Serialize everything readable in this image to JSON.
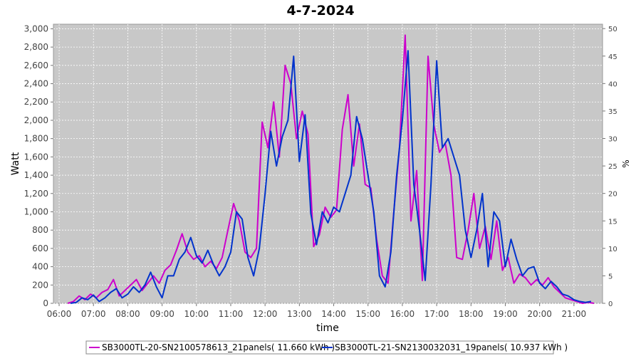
{
  "chart_data": {
    "type": "line",
    "title": "4-7-2024",
    "xlabel": "time",
    "ylabel": "Watt",
    "y2label": "%",
    "x_ticks": [
      "06:00",
      "07:00",
      "08:00",
      "09:00",
      "10:00",
      "11:00",
      "12:00",
      "13:00",
      "14:00",
      "15:00",
      "16:00",
      "17:00",
      "18:00",
      "19:00",
      "20:00",
      "21:00"
    ],
    "y_ticks": [
      "0",
      "200",
      "400",
      "600",
      "800",
      "1,000",
      "1,200",
      "1,400",
      "1,600",
      "1,800",
      "2,000",
      "2,200",
      "2,400",
      "2,600",
      "2,800",
      "3,000"
    ],
    "y2_ticks": [
      "0",
      "5",
      "10",
      "15",
      "20",
      "25",
      "30",
      "35",
      "40",
      "45",
      "50"
    ],
    "xlim": [
      "05:50",
      "21:50"
    ],
    "ylim": [
      0,
      3050
    ],
    "y2lim": [
      0,
      50.8
    ],
    "grid": true,
    "legend_position": "bottom",
    "series": [
      {
        "name": "SB3000TL-20-SN2100578613_21panels( 11.660 kWh )",
        "color": "#cc00cc",
        "points": [
          [
            "06:15",
            0
          ],
          [
            "06:25",
            20
          ],
          [
            "06:35",
            80
          ],
          [
            "06:45",
            40
          ],
          [
            "06:55",
            100
          ],
          [
            "07:05",
            60
          ],
          [
            "07:15",
            120
          ],
          [
            "07:25",
            150
          ],
          [
            "07:35",
            260
          ],
          [
            "07:45",
            80
          ],
          [
            "07:55",
            140
          ],
          [
            "08:05",
            200
          ],
          [
            "08:15",
            260
          ],
          [
            "08:25",
            140
          ],
          [
            "08:35",
            220
          ],
          [
            "08:45",
            300
          ],
          [
            "08:55",
            220
          ],
          [
            "09:05",
            360
          ],
          [
            "09:15",
            420
          ],
          [
            "09:25",
            580
          ],
          [
            "09:35",
            760
          ],
          [
            "09:45",
            560
          ],
          [
            "09:55",
            480
          ],
          [
            "10:05",
            520
          ],
          [
            "10:15",
            400
          ],
          [
            "10:25",
            460
          ],
          [
            "10:35",
            380
          ],
          [
            "10:45",
            500
          ],
          [
            "10:55",
            800
          ],
          [
            "11:05",
            1090
          ],
          [
            "11:15",
            900
          ],
          [
            "11:25",
            560
          ],
          [
            "11:35",
            500
          ],
          [
            "11:45",
            600
          ],
          [
            "11:55",
            1980
          ],
          [
            "12:05",
            1700
          ],
          [
            "12:15",
            2200
          ],
          [
            "12:25",
            1600
          ],
          [
            "12:35",
            2600
          ],
          [
            "12:45",
            2400
          ],
          [
            "12:55",
            1800
          ],
          [
            "13:05",
            2100
          ],
          [
            "13:15",
            1850
          ],
          [
            "13:25",
            620
          ],
          [
            "13:35",
            750
          ],
          [
            "13:45",
            1050
          ],
          [
            "13:55",
            940
          ],
          [
            "14:05",
            1020
          ],
          [
            "14:15",
            1900
          ],
          [
            "14:25",
            2280
          ],
          [
            "14:35",
            1500
          ],
          [
            "14:45",
            1960
          ],
          [
            "14:55",
            1300
          ],
          [
            "15:05",
            1260
          ],
          [
            "15:15",
            700
          ],
          [
            "15:25",
            300
          ],
          [
            "15:35",
            220
          ],
          [
            "15:45",
            1000
          ],
          [
            "15:55",
            1700
          ],
          [
            "16:05",
            2930
          ],
          [
            "16:15",
            900
          ],
          [
            "16:25",
            1450
          ],
          [
            "16:35",
            250
          ],
          [
            "16:45",
            2700
          ],
          [
            "16:55",
            1950
          ],
          [
            "17:05",
            1650
          ],
          [
            "17:15",
            1750
          ],
          [
            "17:25",
            1400
          ],
          [
            "17:35",
            500
          ],
          [
            "17:45",
            480
          ],
          [
            "17:55",
            800
          ],
          [
            "18:05",
            1200
          ],
          [
            "18:15",
            600
          ],
          [
            "18:25",
            840
          ],
          [
            "18:35",
            480
          ],
          [
            "18:45",
            900
          ],
          [
            "18:55",
            360
          ],
          [
            "19:05",
            500
          ],
          [
            "19:15",
            220
          ],
          [
            "19:25",
            320
          ],
          [
            "19:35",
            280
          ],
          [
            "19:45",
            200
          ],
          [
            "19:55",
            260
          ],
          [
            "20:05",
            200
          ],
          [
            "20:15",
            280
          ],
          [
            "20:25",
            180
          ],
          [
            "20:35",
            120
          ],
          [
            "20:45",
            60
          ],
          [
            "20:55",
            40
          ],
          [
            "21:05",
            20
          ],
          [
            "21:15",
            0
          ],
          [
            "21:25",
            10
          ],
          [
            "21:35",
            0
          ]
        ]
      },
      {
        "name": "SB3000TL-21-SN2130032031_19panels( 10.937 kWh )",
        "color": "#0033cc",
        "points": [
          [
            "06:20",
            0
          ],
          [
            "06:30",
            10
          ],
          [
            "06:40",
            60
          ],
          [
            "06:50",
            40
          ],
          [
            "07:00",
            90
          ],
          [
            "07:10",
            20
          ],
          [
            "07:20",
            60
          ],
          [
            "07:30",
            120
          ],
          [
            "07:40",
            160
          ],
          [
            "07:50",
            60
          ],
          [
            "08:00",
            100
          ],
          [
            "08:10",
            180
          ],
          [
            "08:20",
            120
          ],
          [
            "08:30",
            200
          ],
          [
            "08:40",
            340
          ],
          [
            "08:50",
            180
          ],
          [
            "09:00",
            60
          ],
          [
            "09:10",
            300
          ],
          [
            "09:20",
            300
          ],
          [
            "09:30",
            480
          ],
          [
            "09:40",
            560
          ],
          [
            "09:50",
            720
          ],
          [
            "10:00",
            520
          ],
          [
            "10:10",
            440
          ],
          [
            "10:20",
            580
          ],
          [
            "10:30",
            420
          ],
          [
            "10:40",
            300
          ],
          [
            "10:50",
            400
          ],
          [
            "11:00",
            560
          ],
          [
            "11:10",
            1000
          ],
          [
            "11:20",
            920
          ],
          [
            "11:30",
            500
          ],
          [
            "11:40",
            300
          ],
          [
            "11:50",
            600
          ],
          [
            "12:00",
            1200
          ],
          [
            "12:10",
            1880
          ],
          [
            "12:20",
            1500
          ],
          [
            "12:30",
            1820
          ],
          [
            "12:40",
            2000
          ],
          [
            "12:50",
            2700
          ],
          [
            "13:00",
            1550
          ],
          [
            "13:10",
            2060
          ],
          [
            "13:20",
            980
          ],
          [
            "13:30",
            640
          ],
          [
            "13:40",
            1000
          ],
          [
            "13:50",
            880
          ],
          [
            "14:00",
            1050
          ],
          [
            "14:10",
            1000
          ],
          [
            "14:20",
            1200
          ],
          [
            "14:30",
            1400
          ],
          [
            "14:40",
            2040
          ],
          [
            "14:50",
            1800
          ],
          [
            "15:00",
            1400
          ],
          [
            "15:10",
            1000
          ],
          [
            "15:20",
            300
          ],
          [
            "15:30",
            180
          ],
          [
            "15:40",
            560
          ],
          [
            "15:50",
            1400
          ],
          [
            "16:00",
            2000
          ],
          [
            "16:10",
            2760
          ],
          [
            "16:20",
            1300
          ],
          [
            "16:30",
            800
          ],
          [
            "16:40",
            250
          ],
          [
            "16:50",
            1300
          ],
          [
            "17:00",
            2650
          ],
          [
            "17:10",
            1700
          ],
          [
            "17:20",
            1800
          ],
          [
            "17:30",
            1600
          ],
          [
            "17:40",
            1400
          ],
          [
            "17:50",
            800
          ],
          [
            "18:00",
            500
          ],
          [
            "18:10",
            800
          ],
          [
            "18:20",
            1200
          ],
          [
            "18:30",
            400
          ],
          [
            "18:40",
            1000
          ],
          [
            "18:50",
            900
          ],
          [
            "19:00",
            400
          ],
          [
            "19:10",
            700
          ],
          [
            "19:20",
            480
          ],
          [
            "19:30",
            300
          ],
          [
            "19:40",
            380
          ],
          [
            "19:50",
            400
          ],
          [
            "20:00",
            220
          ],
          [
            "20:10",
            160
          ],
          [
            "20:20",
            240
          ],
          [
            "20:30",
            180
          ],
          [
            "20:40",
            100
          ],
          [
            "20:50",
            80
          ],
          [
            "21:00",
            40
          ],
          [
            "21:10",
            20
          ],
          [
            "21:20",
            10
          ],
          [
            "21:30",
            20
          ]
        ]
      }
    ]
  }
}
